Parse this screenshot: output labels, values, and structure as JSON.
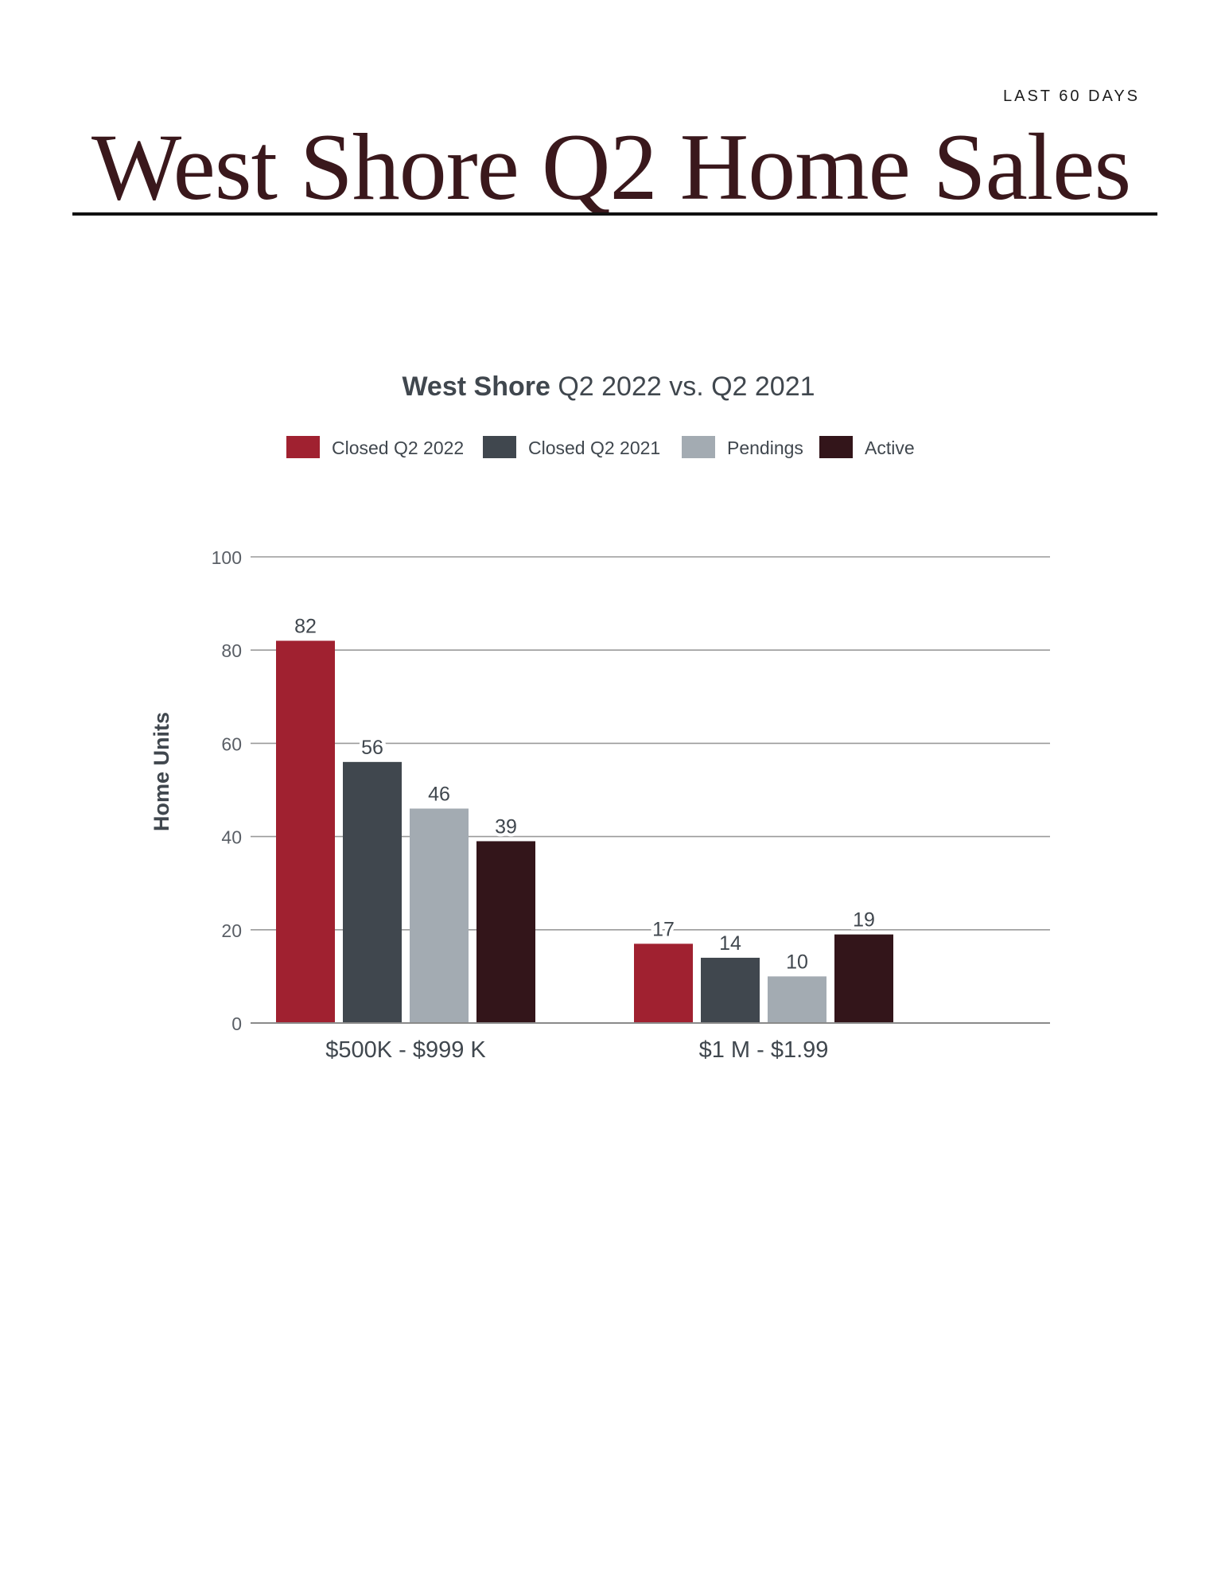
{
  "page": {
    "period_label": "LAST 60 DAYS",
    "headline": "West Shore Q2 Home Sales"
  },
  "chart_data": {
    "type": "bar",
    "title_bold": "West Shore",
    "title_rest": " Q2 2022 vs. Q2 2021",
    "ylabel": "Home Units",
    "xlabel": "",
    "ylim": [
      0,
      100
    ],
    "yticks": [
      0,
      20,
      40,
      60,
      80,
      100
    ],
    "grid": true,
    "legend_placement": "top-center",
    "categories": [
      "$500K - $999 K",
      "$1 M - $1.99"
    ],
    "series": [
      {
        "name": "Closed Q2 2022",
        "color": "#a02130",
        "values": [
          82,
          17
        ]
      },
      {
        "name": "Closed Q2 2021",
        "color": "#40474e",
        "values": [
          56,
          14
        ]
      },
      {
        "name": "Pendings",
        "color": "#a3abb2",
        "values": [
          46,
          10
        ]
      },
      {
        "name": "Active",
        "color": "#33151a",
        "values": [
          39,
          19
        ]
      }
    ]
  }
}
